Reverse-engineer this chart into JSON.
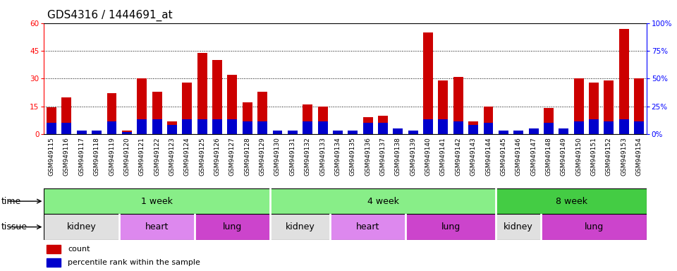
{
  "title": "GDS4316 / 1444691_at",
  "samples": [
    "GSM949115",
    "GSM949116",
    "GSM949117",
    "GSM949118",
    "GSM949119",
    "GSM949120",
    "GSM949121",
    "GSM949122",
    "GSM949123",
    "GSM949124",
    "GSM949125",
    "GSM949126",
    "GSM949127",
    "GSM949128",
    "GSM949129",
    "GSM949130",
    "GSM949131",
    "GSM949132",
    "GSM949133",
    "GSM949134",
    "GSM949135",
    "GSM949136",
    "GSM949137",
    "GSM949138",
    "GSM949139",
    "GSM949140",
    "GSM949141",
    "GSM949142",
    "GSM949143",
    "GSM949144",
    "GSM949145",
    "GSM949146",
    "GSM949147",
    "GSM949148",
    "GSM949149",
    "GSM949150",
    "GSM949151",
    "GSM949152",
    "GSM949153",
    "GSM949154"
  ],
  "count_values": [
    14.5,
    20,
    2,
    1.5,
    22,
    2,
    30,
    23,
    7,
    28,
    44,
    40,
    32,
    17,
    23,
    1,
    1,
    16,
    15,
    1.5,
    1,
    9,
    10,
    2,
    1,
    55,
    29,
    31,
    7,
    15,
    1,
    1,
    2,
    14,
    3,
    30,
    28,
    29,
    57,
    30
  ],
  "percentile_values": [
    6,
    6,
    2,
    2,
    7,
    1,
    8,
    8,
    5,
    8,
    8,
    8,
    8,
    7,
    7,
    2,
    2,
    7,
    7,
    2,
    2,
    6,
    6,
    3,
    2,
    8,
    8,
    7,
    5,
    6,
    2,
    2,
    3,
    6,
    3,
    7,
    8,
    7,
    8,
    7
  ],
  "left_ylim": [
    0,
    60
  ],
  "left_yticks": [
    0,
    15,
    30,
    45,
    60
  ],
  "right_ylim": [
    0,
    100
  ],
  "right_yticks": [
    0,
    25,
    50,
    75,
    100
  ],
  "right_yticklabels": [
    "0%",
    "25%",
    "50%",
    "75%",
    "100%"
  ],
  "bar_color": "#cc0000",
  "percentile_color": "#0000cc",
  "time_groups": [
    {
      "label": "1 week",
      "start": 0,
      "end": 15,
      "color": "#88ee88"
    },
    {
      "label": "4 week",
      "start": 15,
      "end": 30,
      "color": "#88ee88"
    },
    {
      "label": "8 week",
      "start": 30,
      "end": 40,
      "color": "#44cc44"
    }
  ],
  "tissue_groups": [
    {
      "label": "kidney",
      "start": 0,
      "end": 5,
      "color": "#e0e0e0"
    },
    {
      "label": "heart",
      "start": 5,
      "end": 10,
      "color": "#dd88ee"
    },
    {
      "label": "lung",
      "start": 10,
      "end": 15,
      "color": "#cc44cc"
    },
    {
      "label": "kidney",
      "start": 15,
      "end": 19,
      "color": "#e0e0e0"
    },
    {
      "label": "heart",
      "start": 19,
      "end": 24,
      "color": "#dd88ee"
    },
    {
      "label": "lung",
      "start": 24,
      "end": 30,
      "color": "#cc44cc"
    },
    {
      "label": "kidney",
      "start": 30,
      "end": 33,
      "color": "#e0e0e0"
    },
    {
      "label": "lung",
      "start": 33,
      "end": 40,
      "color": "#cc44cc"
    }
  ],
  "tick_fontsize": 6.5,
  "label_fontsize": 9,
  "legend_fontsize": 8,
  "bar_width": 0.65,
  "xtick_bg_color": "#cccccc"
}
